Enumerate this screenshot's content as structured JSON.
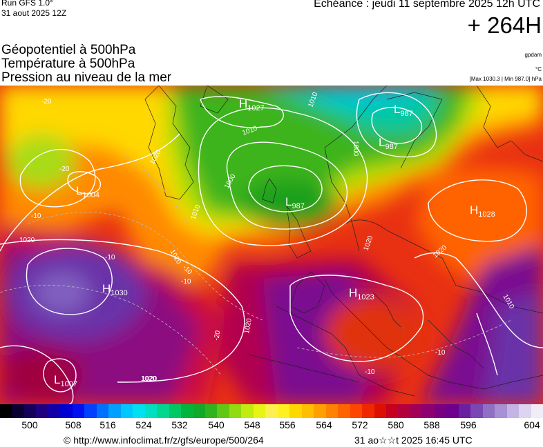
{
  "header": {
    "run": "Run GFS 1.0°",
    "run_date": "31 aout 2025 12Z",
    "echeance": "Echéance : jeudi 11 septembre 2025 12h UTC",
    "lead_time": "+ 264H"
  },
  "layers": [
    "Géopotentiel à 500hPa",
    "Température à 500hPa",
    "Pression au niveau de la mer"
  ],
  "units": {
    "geopotential": "gpdam",
    "temperature": "°C",
    "pressure_extremes": "[Max 1030.3 | Min 987.0] hPa"
  },
  "pressure_centers": [
    {
      "letter": "H",
      "value": "1027"
    },
    {
      "letter": "L",
      "value": "987"
    },
    {
      "letter": "L",
      "value": "987"
    },
    {
      "letter": "L",
      "value": "1004"
    },
    {
      "letter": "L",
      "value": "987"
    },
    {
      "letter": "H",
      "value": "1028"
    },
    {
      "letter": "H",
      "value": "1030"
    },
    {
      "letter": "H",
      "value": "1023"
    },
    {
      "letter": "L",
      "value": "1007"
    }
  ],
  "isobar_labels": [
    "1010",
    "1010",
    "1000",
    "1000",
    "1020",
    "1010",
    "1020",
    "1020",
    "1020",
    "1020",
    "1020",
    "1010",
    "1020",
    "-20",
    "-20",
    "-10",
    "-10",
    "-10",
    "-10",
    "-20",
    "-10",
    "-10",
    "1020"
  ],
  "color_scale": {
    "colors": [
      "#000000",
      "#0a0030",
      "#14005a",
      "#1e0080",
      "#1000a8",
      "#0000d0",
      "#0010f0",
      "#0040ff",
      "#0070ff",
      "#00a0ff",
      "#00c8ff",
      "#00e0f0",
      "#00e0c0",
      "#00d890",
      "#00c864",
      "#00b43c",
      "#10aa28",
      "#30b41e",
      "#60c814",
      "#90dc10",
      "#c0ec10",
      "#e6f514",
      "#fcf050",
      "#fff020",
      "#ffd800",
      "#ffbe00",
      "#ffa000",
      "#ff8200",
      "#ff6400",
      "#ff4600",
      "#f02800",
      "#dc1000",
      "#c80020",
      "#b4003c",
      "#a00058",
      "#8c0070",
      "#780080",
      "#6e008e",
      "#6a20a0",
      "#7a48b4",
      "#9070c4",
      "#a890d4",
      "#c4b4e4",
      "#dcd4f0",
      "#f0ecf8"
    ],
    "ticks": [
      "500",
      "508",
      "516",
      "524",
      "532",
      "540",
      "548",
      "556",
      "564",
      "572",
      "580",
      "588",
      "596",
      "604"
    ]
  },
  "footer": {
    "credit": "© http://www.infoclimat.fr/z/gfs/europe/500/264",
    "created": "31 ao☆☆t 2025 16:45 UTC"
  }
}
